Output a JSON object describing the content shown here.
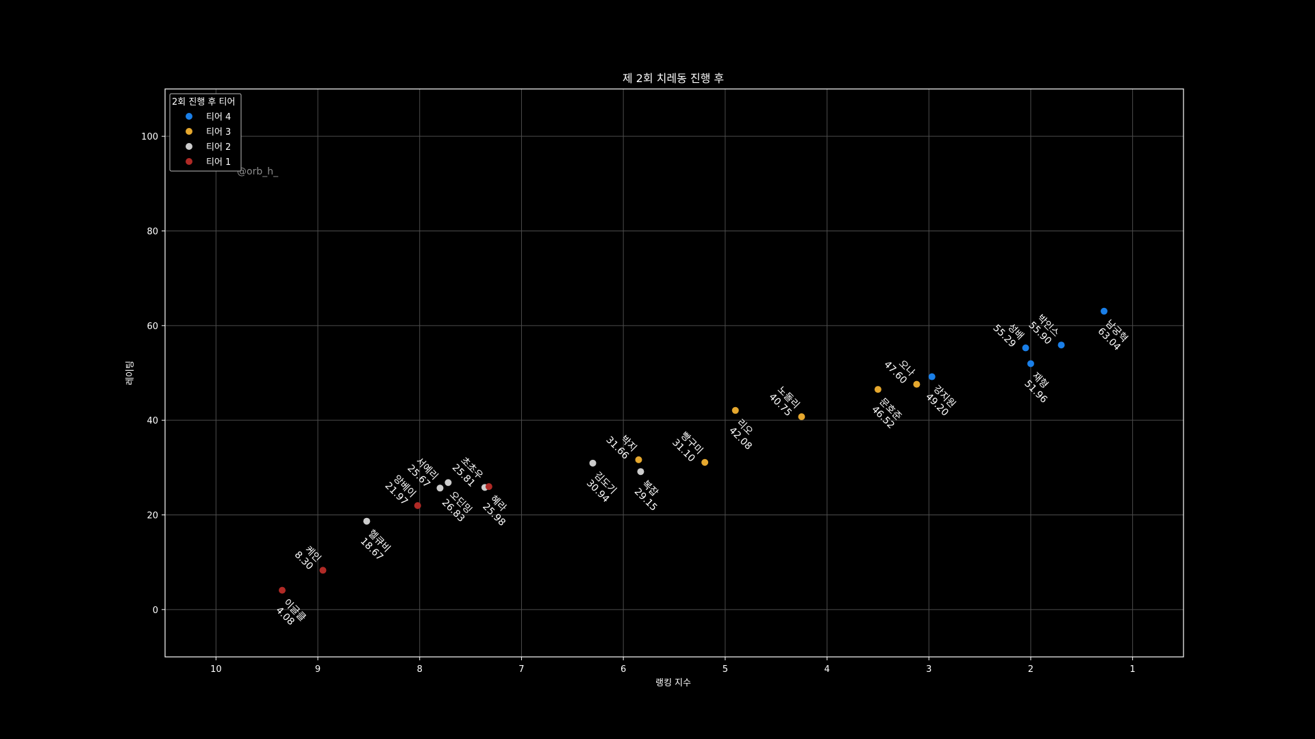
{
  "chart_data": {
    "type": "scatter",
    "title": "제 2회 치레동 진행 후",
    "xlabel": "랭킹 지수",
    "ylabel": "레이팅",
    "x_inverted": true,
    "xlim": [
      10.5,
      0.5
    ],
    "ylim": [
      -10,
      110
    ],
    "xticks": [
      10,
      9,
      8,
      7,
      6,
      5,
      4,
      3,
      2,
      1
    ],
    "yticks": [
      0,
      20,
      40,
      60,
      80,
      100
    ],
    "grid": true,
    "legend": {
      "title": "2회 진행 후 티어",
      "position": "top-left"
    },
    "watermark": "@orb_h_",
    "series": [
      {
        "name": "티어 4",
        "color": "#1a7fe8",
        "points": [
          {
            "label": "남궁혁",
            "value": "63.04",
            "x": 1.28,
            "y": 63.04
          },
          {
            "label": "박인스",
            "value": "55.90",
            "x": 1.7,
            "y": 55.9
          },
          {
            "label": "성배",
            "value": "55.29",
            "x": 2.05,
            "y": 55.29
          },
          {
            "label": "재형",
            "value": "51.96",
            "x": 2.0,
            "y": 51.96
          },
          {
            "label": "강지원",
            "value": "49.20",
            "x": 2.97,
            "y": 49.2
          }
        ]
      },
      {
        "name": "티어 3",
        "color": "#e6a82e",
        "points": [
          {
            "label": "오나",
            "value": "47.60",
            "x": 3.12,
            "y": 47.6
          },
          {
            "label": "문호준",
            "value": "46.52",
            "x": 3.5,
            "y": 46.52
          },
          {
            "label": "리오",
            "value": "42.08",
            "x": 4.9,
            "y": 42.08
          },
          {
            "label": "노돌리",
            "value": "40.75",
            "x": 4.25,
            "y": 40.75
          },
          {
            "label": "박지",
            "value": "31.66",
            "x": 5.85,
            "y": 31.66
          },
          {
            "label": "빵구미",
            "value": "31.10",
            "x": 5.2,
            "y": 31.1
          }
        ]
      },
      {
        "name": "티어 2",
        "color": "#cccccc",
        "points": [
          {
            "label": "김도기",
            "value": "30.94",
            "x": 6.3,
            "y": 30.94
          },
          {
            "label": "복잡",
            "value": "29.15",
            "x": 5.83,
            "y": 29.15
          },
          {
            "label": "오딘밍",
            "value": "26.83",
            "x": 7.72,
            "y": 26.83
          },
          {
            "label": "초초우",
            "value": "25.81",
            "x": 7.36,
            "y": 25.81
          },
          {
            "label": "서예리",
            "value": "25.67",
            "x": 7.8,
            "y": 25.67
          },
          {
            "label": "헬큐비",
            "value": "18.67",
            "x": 8.52,
            "y": 18.67
          }
        ]
      },
      {
        "name": "티어 1",
        "color": "#b02a26",
        "points": [
          {
            "label": "혜라",
            "value": "25.98",
            "x": 7.32,
            "y": 25.98
          },
          {
            "label": "앙베이",
            "value": "21.97",
            "x": 8.02,
            "y": 21.97
          },
          {
            "label": "케인",
            "value": "8.30",
            "x": 8.95,
            "y": 8.3
          },
          {
            "label": "이글클",
            "value": "4.08",
            "x": 9.35,
            "y": 4.08
          }
        ]
      }
    ]
  }
}
